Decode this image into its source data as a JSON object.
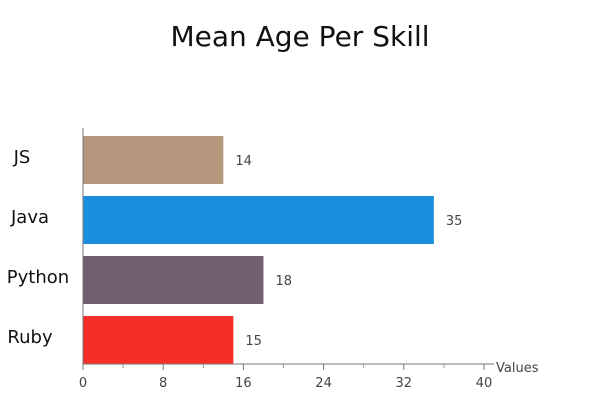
{
  "chart_data": {
    "type": "bar",
    "orientation": "horizontal",
    "title": "Mean Age Per Skill",
    "xlabel": "Values",
    "ylabel": "",
    "categories": [
      "JS",
      "Java",
      "Python",
      "Ruby"
    ],
    "values": [
      14,
      35,
      18,
      15
    ],
    "colors": [
      "#b5977e",
      "#1a8fdd",
      "#70606f",
      "#f52f27"
    ],
    "xlim": [
      0,
      41
    ],
    "xticks": [
      0,
      8,
      16,
      24,
      32,
      40
    ],
    "grid": false,
    "legend": "none"
  }
}
